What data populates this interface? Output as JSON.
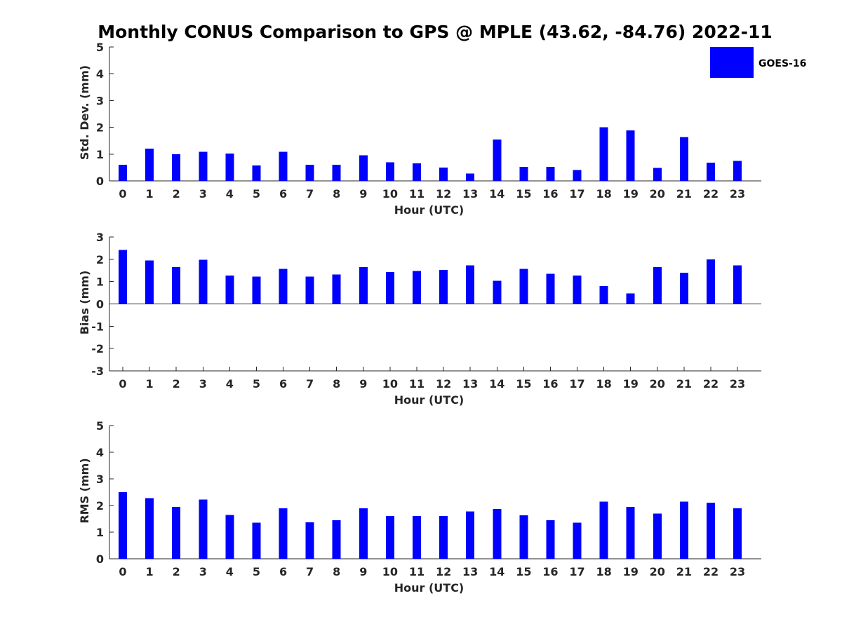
{
  "title": "Monthly CONUS Comparison to GPS @ MPLE (43.62, -84.76) 2022-11",
  "legend": {
    "label": "GOES-16",
    "color": "#0000ff"
  },
  "chart_data": [
    {
      "type": "bar",
      "title": "",
      "xlabel": "Hour (UTC)",
      "ylabel": "Std. Dev. (mm)",
      "categories": [
        "0",
        "1",
        "2",
        "3",
        "4",
        "5",
        "6",
        "7",
        "8",
        "9",
        "10",
        "11",
        "12",
        "13",
        "14",
        "15",
        "16",
        "17",
        "18",
        "19",
        "20",
        "21",
        "22",
        "23"
      ],
      "ylim": [
        0,
        5
      ],
      "yticks": [
        0,
        1,
        2,
        3,
        4,
        5
      ],
      "series": [
        {
          "name": "GOES-16",
          "color": "#0000ff",
          "values": [
            0.6,
            1.2,
            1.0,
            1.08,
            1.02,
            0.58,
            1.08,
            0.6,
            0.6,
            0.95,
            0.7,
            0.65,
            0.5,
            0.28,
            1.55,
            0.52,
            0.52,
            0.4,
            2.0,
            1.88,
            0.48,
            1.63,
            0.68,
            0.75
          ]
        }
      ]
    },
    {
      "type": "bar",
      "title": "",
      "xlabel": "Hour (UTC)",
      "ylabel": "Bias (mm)",
      "categories": [
        "0",
        "1",
        "2",
        "3",
        "4",
        "5",
        "6",
        "7",
        "8",
        "9",
        "10",
        "11",
        "12",
        "13",
        "14",
        "15",
        "16",
        "17",
        "18",
        "19",
        "20",
        "21",
        "22",
        "23"
      ],
      "ylim": [
        -3,
        3
      ],
      "yticks": [
        -3,
        -2,
        -1,
        0,
        1,
        2,
        3
      ],
      "series": [
        {
          "name": "GOES-16",
          "color": "#0000ff",
          "values": [
            2.42,
            1.95,
            1.65,
            1.98,
            1.28,
            1.22,
            1.57,
            1.22,
            1.32,
            1.65,
            1.43,
            1.47,
            1.53,
            1.72,
            1.03,
            1.57,
            1.35,
            1.28,
            0.8,
            0.47,
            1.65,
            1.4,
            2.0,
            1.72
          ]
        }
      ]
    },
    {
      "type": "bar",
      "title": "",
      "xlabel": "Hour (UTC)",
      "ylabel": "RMS (mm)",
      "categories": [
        "0",
        "1",
        "2",
        "3",
        "4",
        "5",
        "6",
        "7",
        "8",
        "9",
        "10",
        "11",
        "12",
        "13",
        "14",
        "15",
        "16",
        "17",
        "18",
        "19",
        "20",
        "21",
        "22",
        "23"
      ],
      "ylim": [
        0,
        5
      ],
      "yticks": [
        0,
        1,
        2,
        3,
        4,
        5
      ],
      "series": [
        {
          "name": "GOES-16",
          "color": "#0000ff",
          "values": [
            2.5,
            2.28,
            1.95,
            2.23,
            1.65,
            1.35,
            1.9,
            1.37,
            1.45,
            1.9,
            1.6,
            1.6,
            1.6,
            1.77,
            1.87,
            1.63,
            1.45,
            1.35,
            2.15,
            1.95,
            1.7,
            2.15,
            2.1,
            1.9
          ]
        }
      ]
    }
  ]
}
